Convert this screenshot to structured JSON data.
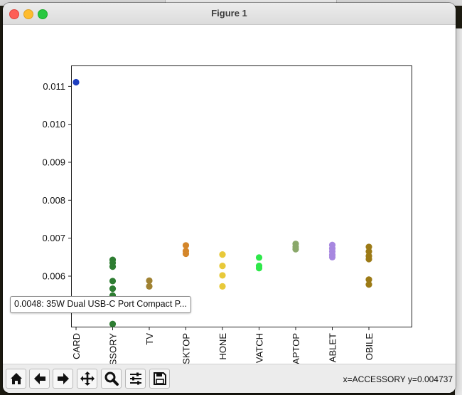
{
  "window": {
    "title": "Figure 1"
  },
  "tooltip": {
    "text": "0.0048: 35W Dual USB-C Port Compact P..."
  },
  "status": {
    "coords": "x=ACCESSORY y=0.004737"
  },
  "toolbar": {
    "buttons": [
      {
        "name": "home-button",
        "icon": "home-icon"
      },
      {
        "name": "back-button",
        "icon": "arrow-left-icon"
      },
      {
        "name": "forward-button",
        "icon": "arrow-right-icon"
      },
      {
        "name": "pan-button",
        "icon": "move-icon"
      },
      {
        "name": "zoom-button",
        "icon": "magnifier-icon"
      },
      {
        "name": "configure-subplots-button",
        "icon": "sliders-icon"
      },
      {
        "name": "save-button",
        "icon": "floppy-disk-icon"
      }
    ]
  },
  "chart_data": {
    "type": "scatter",
    "categories": [
      "CARD",
      "SSORY",
      "TV",
      "SKTOP",
      "HONE",
      "VATCH",
      "APTOP",
      "ABLET",
      "OBILE"
    ],
    "ylim": [
      0.00465,
      0.01155
    ],
    "yticks": [
      0.006,
      0.007,
      0.008,
      0.009,
      0.01,
      0.011
    ],
    "ytick_labels": [
      "0.006",
      "0.007",
      "0.008",
      "0.009",
      "0.010",
      "0.011"
    ],
    "grid": false,
    "series": [
      {
        "category": "CARD",
        "color": "#1f3fbf",
        "values": [
          0.01111
        ]
      },
      {
        "category": "SSORY",
        "color": "#2e7d32",
        "values": [
          0.00643,
          0.00635,
          0.00625,
          0.00587,
          0.00567,
          0.00549,
          0.00474
        ]
      },
      {
        "category": "TV",
        "color": "#a08232",
        "values": [
          0.00588,
          0.00573
        ]
      },
      {
        "category": "SKTOP",
        "color": "#d4862a",
        "values": [
          0.00681,
          0.00666,
          0.00659
        ]
      },
      {
        "category": "HONE",
        "color": "#e8c93a",
        "values": [
          0.00657,
          0.00627,
          0.00602,
          0.00573
        ]
      },
      {
        "category": "VATCH",
        "color": "#2ee84a",
        "values": [
          0.00649,
          0.00627,
          0.00621
        ]
      },
      {
        "category": "APTOP",
        "color": "#8aa86a",
        "values": [
          0.00685,
          0.00677,
          0.00671
        ]
      },
      {
        "category": "ABLET",
        "color": "#a787e0",
        "values": [
          0.00682,
          0.00673,
          0.00665,
          0.00656,
          0.0065
        ]
      },
      {
        "category": "OBILE",
        "color": "#9c7a16",
        "values": [
          0.00677,
          0.00665,
          0.00653,
          0.00645,
          0.00591,
          0.00578
        ]
      }
    ]
  }
}
